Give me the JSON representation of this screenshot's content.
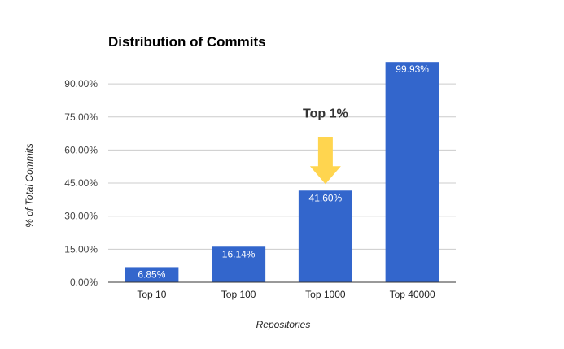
{
  "chart_data": {
    "type": "bar",
    "title": "Distribution of Commits",
    "xlabel": "Repositories",
    "ylabel": "% of Total Commits",
    "categories": [
      "Top 10",
      "Top 100",
      "Top 1000",
      "Top 40000"
    ],
    "values": [
      6.85,
      16.14,
      41.6,
      99.93
    ],
    "data_labels": [
      "6.85%",
      "16.14%",
      "41.60%",
      "99.93%"
    ],
    "ylim": [
      0,
      100
    ],
    "yticks": [
      0,
      15,
      30,
      45,
      60,
      75,
      90
    ],
    "ytick_labels": [
      "0.00%",
      "15.00%",
      "30.00%",
      "45.00%",
      "60.00%",
      "75.00%",
      "90.00%"
    ],
    "grid": true,
    "legend": "none",
    "bar_color": "#3366cc",
    "annotation": {
      "text": "Top 1%",
      "target_category": "Top 1000",
      "arrow_color": "#ffd54f"
    }
  }
}
